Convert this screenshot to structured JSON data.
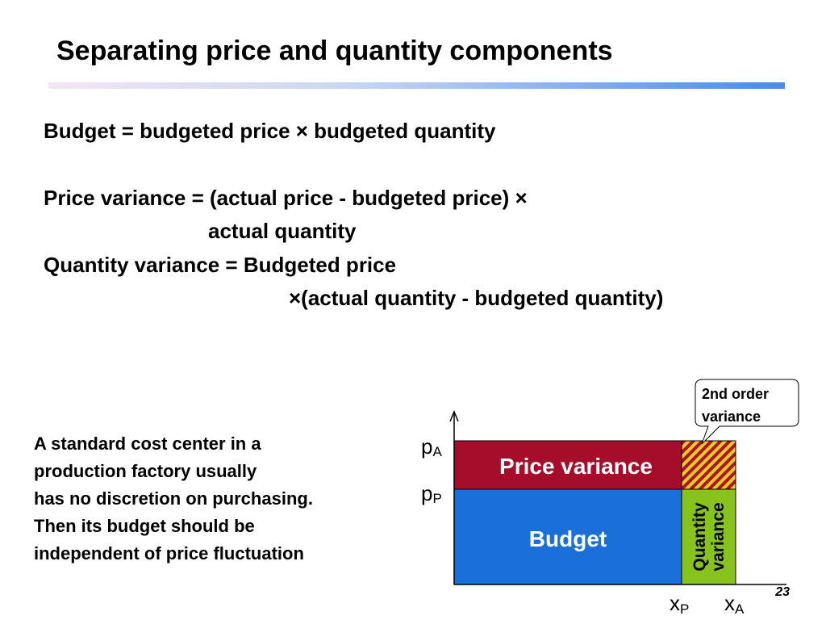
{
  "title": "Separating price and quantity components",
  "formulas": [
    "Budget = budgeted price × budgeted quantity",
    "Price variance = (actual price - budgeted price) ×",
    "actual quantity",
    "Quantity variance = Budgeted price",
    "×(actual quantity - budgeted quantity)"
  ],
  "note": [
    "A standard cost center in a",
    "production factory usually",
    "has no discretion on purchasing.",
    "Then its budget should be",
    "independent of price fluctuation"
  ],
  "diagram": {
    "price_variance": "Price variance",
    "budget": "Budget",
    "quantity_variance": [
      "Quantity",
      "variance"
    ],
    "callout": [
      "2nd order",
      "variance"
    ],
    "p_actual": {
      "base": "p",
      "sub": "A"
    },
    "p_planned": {
      "base": "p",
      "sub": "P"
    },
    "x_planned": {
      "base": "x",
      "sub": "P"
    },
    "x_actual": {
      "base": "x",
      "sub": "A"
    }
  },
  "page_number": "23"
}
